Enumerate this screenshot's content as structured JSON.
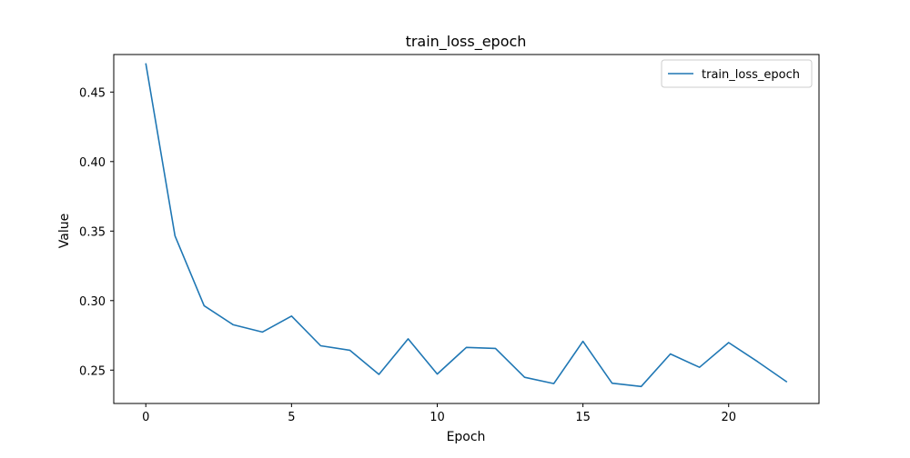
{
  "chart_data": {
    "type": "line",
    "title": "train_loss_epoch",
    "xlabel": "Epoch",
    "ylabel": "Value",
    "xlim": [
      -1.1,
      23.1
    ],
    "ylim": [
      0.226,
      0.477
    ],
    "x_ticks": [
      0,
      5,
      10,
      15,
      20
    ],
    "y_ticks": [
      0.25,
      0.3,
      0.35,
      0.4,
      0.45
    ],
    "y_tick_labels": [
      "0.25",
      "0.30",
      "0.35",
      "0.40",
      "0.45"
    ],
    "legend": {
      "placement": "top-right",
      "entries": [
        "train_loss_epoch"
      ]
    },
    "grid": false,
    "colors": {
      "series": "#1f77b4"
    },
    "series": [
      {
        "name": "train_loss_epoch",
        "x": [
          0,
          1,
          2,
          3,
          4,
          5,
          6,
          7,
          8,
          9,
          10,
          11,
          12,
          13,
          14,
          15,
          16,
          17,
          18,
          19,
          20,
          21,
          22
        ],
        "values": [
          0.4707,
          0.3465,
          0.2963,
          0.2826,
          0.2774,
          0.2889,
          0.2675,
          0.2643,
          0.2469,
          0.2725,
          0.2472,
          0.2663,
          0.2656,
          0.2448,
          0.2403,
          0.2707,
          0.2406,
          0.2382,
          0.2616,
          0.252,
          0.2698,
          0.256,
          0.2414
        ]
      }
    ]
  }
}
